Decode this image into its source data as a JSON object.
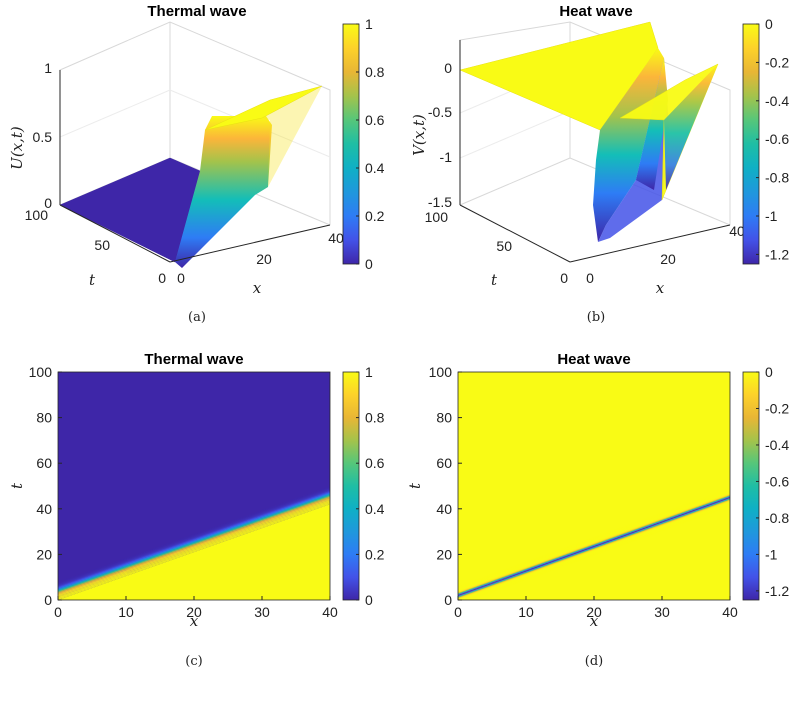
{
  "chart_data": [
    {
      "id": "a",
      "type": "surface",
      "title": "Thermal wave",
      "xlabel": "x",
      "ylabel": "t",
      "zlabel": "U(x,t)",
      "caption": "(a)",
      "x_ticks": [
        "0",
        "20",
        "40"
      ],
      "t_ticks": [
        "0",
        "50",
        "100"
      ],
      "z_ticks": [
        "0",
        "0.5",
        "1"
      ],
      "colorbar_ticks": [
        "0",
        "0.2",
        "0.4",
        "0.6",
        "0.8",
        "1"
      ],
      "xlim": [
        0,
        40
      ],
      "tlim": [
        0,
        100
      ],
      "zlim": [
        0,
        1
      ],
      "description_data": {
        "function": "U = 1 for x > front(t), 0 behind; front(t) ≈ x_0 + t/2.5",
        "front_x_at_t0": 2,
        "front_x_at_t100": 40,
        "low_value": 0,
        "high_value": 1
      }
    },
    {
      "id": "b",
      "type": "surface",
      "title": "Heat wave",
      "xlabel": "x",
      "ylabel": "t",
      "zlabel": "V(x,t)",
      "caption": "(b)",
      "x_ticks": [
        "0",
        "20",
        "40"
      ],
      "t_ticks": [
        "0",
        "50",
        "100"
      ],
      "z_ticks": [
        "0",
        "-0.5",
        "-1",
        "-1.5"
      ],
      "colorbar_ticks": [
        "0",
        "-0.2",
        "-0.4",
        "-0.6",
        "-0.8",
        "-1",
        "-1.2"
      ],
      "xlim": [
        0,
        40
      ],
      "tlim": [
        0,
        100
      ],
      "zlim": [
        -1.5,
        0
      ],
      "description_data": {
        "function": "V ≈ 0 everywhere except a narrow trough of depth ≈ -1.25 travelling with the front",
        "min_value": -1.25,
        "max_value": 0
      }
    },
    {
      "id": "c",
      "type": "heatmap",
      "title": "Thermal wave",
      "xlabel": "x",
      "ylabel": "t",
      "caption": "(c)",
      "x_ticks": [
        "0",
        "10",
        "20",
        "30",
        "40"
      ],
      "y_ticks": [
        "0",
        "20",
        "40",
        "60",
        "80",
        "100"
      ],
      "colorbar_ticks": [
        "0",
        "0.2",
        "0.4",
        "0.6",
        "0.8",
        "1"
      ],
      "xlim": [
        0,
        40
      ],
      "ylim": [
        0,
        100
      ],
      "clim": [
        0,
        1
      ],
      "front": {
        "x": [
          0,
          40
        ],
        "t": [
          4,
          46
        ]
      },
      "front_width": 2.0
    },
    {
      "id": "d",
      "type": "heatmap",
      "title": "Heat wave",
      "xlabel": "x",
      "ylabel": "t",
      "caption": "(d)",
      "x_ticks": [
        "0",
        "10",
        "20",
        "30",
        "40"
      ],
      "y_ticks": [
        "0",
        "20",
        "40",
        "60",
        "80",
        "100"
      ],
      "colorbar_ticks": [
        "0",
        "-0.2",
        "-0.4",
        "-0.6",
        "-0.8",
        "-1",
        "-1.2"
      ],
      "xlim": [
        0,
        40
      ],
      "ylim": [
        0,
        100
      ],
      "clim": [
        -1.25,
        0
      ],
      "front": {
        "x": [
          0,
          40
        ],
        "t": [
          2,
          45
        ]
      },
      "front_width": 2.0,
      "trough_depth": -1.25
    }
  ],
  "colormap": "parula",
  "colors": {
    "parula_low": "#3e26a8",
    "parula_mid": "#13beb8",
    "parula_high": "#f9fb15",
    "axis": "#262626",
    "grid": "#e6e6e6"
  },
  "footer_text": ""
}
